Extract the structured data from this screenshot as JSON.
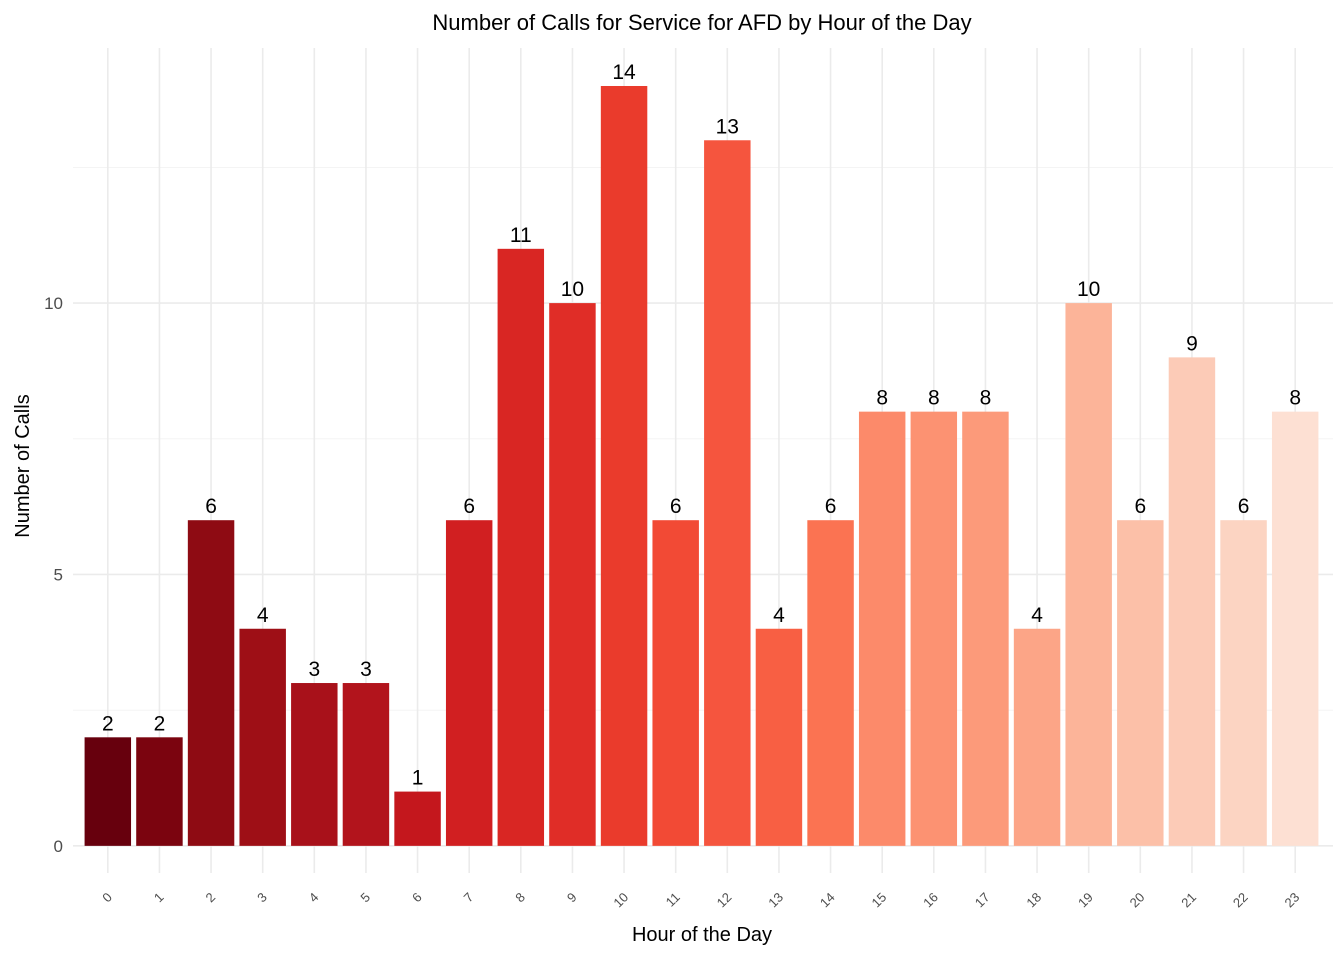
{
  "chart_data": {
    "type": "bar",
    "title": "Number of Calls for Service for AFD by Hour of the Day",
    "xlabel": "Hour of the Day",
    "ylabel": "Number of Calls",
    "categories": [
      "0",
      "1",
      "2",
      "3",
      "4",
      "5",
      "6",
      "7",
      "8",
      "9",
      "10",
      "11",
      "12",
      "13",
      "14",
      "15",
      "16",
      "17",
      "18",
      "19",
      "20",
      "21",
      "22",
      "23"
    ],
    "values": [
      2,
      2,
      6,
      4,
      3,
      3,
      1,
      6,
      11,
      10,
      14,
      6,
      13,
      4,
      6,
      8,
      8,
      8,
      4,
      10,
      6,
      9,
      6,
      8
    ],
    "data_labels": [
      "2",
      "2",
      "6",
      "4",
      "3",
      "3",
      "1",
      "6",
      "11",
      "10",
      "14",
      "6",
      "13",
      "4",
      "6",
      "8",
      "8",
      "8",
      "4",
      "10",
      "6",
      "9",
      "6",
      "8"
    ],
    "y_ticks": [
      0,
      5,
      10
    ],
    "y_tick_labels": [
      "0",
      "5",
      "10"
    ],
    "ylim": [
      -0.5,
      14.7
    ],
    "grid": true,
    "legend": "none",
    "colors": [
      "#67000d",
      "#7b040f",
      "#8e0b13",
      "#9e0f16",
      "#a8111a",
      "#b2141c",
      "#c4171d",
      "#d11f21",
      "#d92623",
      "#e02d27",
      "#ea3b2c",
      "#f24a35",
      "#f5553e",
      "#f85f43",
      "#fb7352",
      "#fc8a6a",
      "#fc9272",
      "#fc9a7a",
      "#fca587",
      "#fcb499",
      "#fcc0a8",
      "#fccbb7",
      "#fcd4c2",
      "#fde0d3"
    ]
  }
}
